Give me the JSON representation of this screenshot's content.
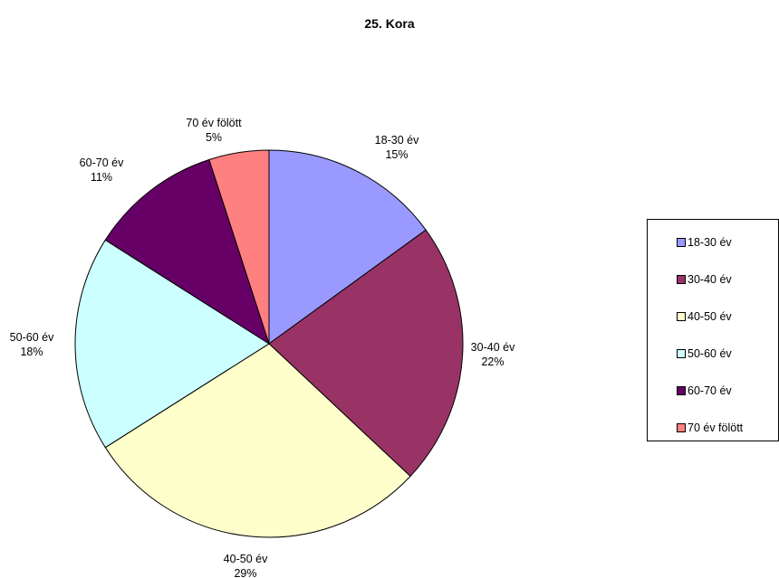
{
  "chart_data": {
    "type": "pie",
    "title": "25. Kora",
    "categories": [
      "18-30 év",
      "30-40 év",
      "40-50 év",
      "50-60 év",
      "60-70 év",
      "70 év fölött"
    ],
    "values": [
      15,
      22,
      29,
      18,
      11,
      5
    ],
    "value_labels": [
      "15%",
      "22%",
      "29%",
      "18%",
      "11%",
      "5%"
    ],
    "colors": [
      "#9999FF",
      "#993366",
      "#FFFFCC",
      "#CCFFFF",
      "#660066",
      "#FF8080"
    ],
    "legend": "right",
    "start": "12 o'clock, clockwise"
  }
}
